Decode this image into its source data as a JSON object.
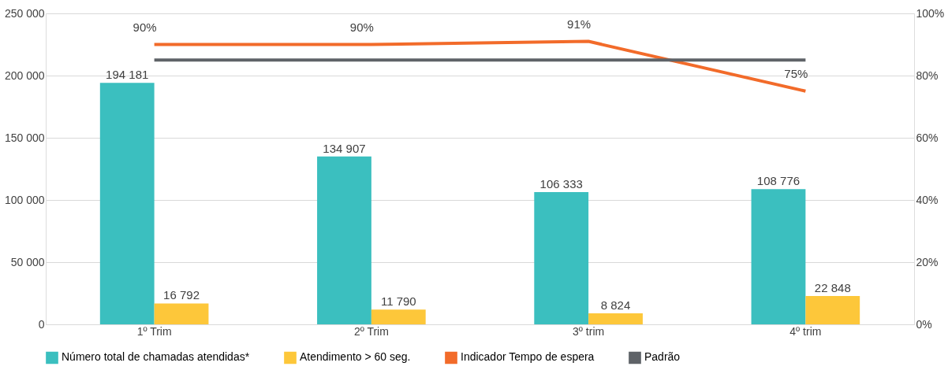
{
  "chart_data": {
    "type": "bar",
    "categories": [
      "1º Trim",
      "2º Trim",
      "3º trim",
      "4º trim"
    ],
    "series": [
      {
        "name": "Número total de chamadas atendidas*",
        "color": "#3bbfbf",
        "values": [
          194181,
          134907,
          106333,
          108776
        ],
        "value_labels": [
          "194 181",
          "134 907",
          "106 333",
          "108 776"
        ]
      },
      {
        "name": "Atendimento > 60 seg.",
        "color": "#fdc73a",
        "values": [
          16792,
          11790,
          8824,
          22848
        ],
        "value_labels": [
          "16 792",
          "11 790",
          "8 824",
          "22 848"
        ]
      },
      {
        "name": "Indicador Tempo de espera",
        "type": "line",
        "axis": "y2",
        "color": "#f26b2a",
        "values": [
          90,
          90,
          91,
          75
        ],
        "value_labels": [
          "90%",
          "90%",
          "91%",
          "75%"
        ]
      },
      {
        "name": "Padrão",
        "type": "line",
        "axis": "y2",
        "color": "#5f6368",
        "values": [
          85,
          85,
          85,
          85
        ]
      }
    ],
    "ylim": [
      0,
      250000
    ],
    "yticks": [
      {
        "value": 0,
        "label": "0"
      },
      {
        "value": 50000,
        "label": "50 000"
      },
      {
        "value": 100000,
        "label": "100 000"
      },
      {
        "value": 150000,
        "label": "150 000"
      },
      {
        "value": 200000,
        "label": "200 000"
      },
      {
        "value": 250000,
        "label": "250 000"
      }
    ],
    "y2lim": [
      0,
      100
    ],
    "y2ticks": [
      {
        "value": 0,
        "label": "0%"
      },
      {
        "value": 20,
        "label": "20%"
      },
      {
        "value": 40,
        "label": "40%"
      },
      {
        "value": 60,
        "label": "60%"
      },
      {
        "value": 80,
        "label": "80%"
      },
      {
        "value": 100,
        "label": "100%"
      }
    ],
    "grid": "y",
    "legend": "bottom"
  }
}
